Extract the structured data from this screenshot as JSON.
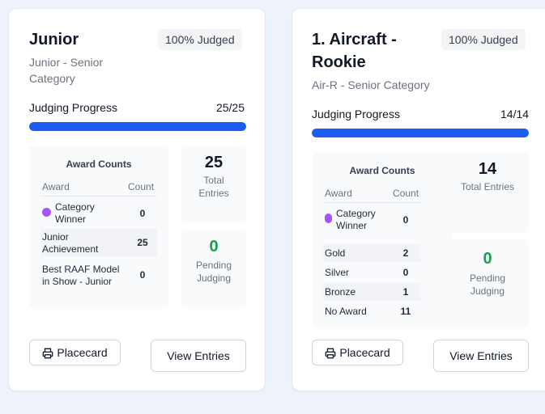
{
  "cards": [
    {
      "title_line1": "Junior",
      "badge": "100% Judged",
      "subtitle_line1": "Junior - Senior",
      "subtitle_line2": "Category",
      "progress_label": "Judging Progress",
      "progress_count": "25/25",
      "progress_fraction": 1.0,
      "award_counts_title": "Award Counts",
      "award_col": "Award",
      "count_col": "Count",
      "awards": [
        {
          "line1": "Category",
          "line2": "Winner",
          "count": "0"
        },
        {
          "line1": "Junior",
          "line2": "Achievement",
          "count": "25"
        },
        {
          "line1": "Best RAAF Model",
          "line2": "in Show - Junior",
          "count": "0"
        }
      ],
      "total_entries": "25",
      "total_label_1": "Total",
      "total_label_2": "Entries",
      "pending": "0",
      "pending_label_1": "Pending",
      "pending_label_2": "Judging",
      "placecard_label": "Placecard",
      "view_entries_label": "View Entries"
    },
    {
      "title_line1": "1. Aircraft -",
      "title_line2": "Rookie",
      "badge": "100% Judged",
      "subtitle_line1": "Air-R - Senior Category",
      "progress_label": "Judging Progress",
      "progress_count": "14/14",
      "progress_fraction": 1.0,
      "award_counts_title": "Award Counts",
      "award_col": "Award",
      "count_col": "Count",
      "awards": [
        {
          "line1": "Category",
          "line2": "Winner",
          "count": "0"
        },
        {
          "line1": "Gold",
          "count": "2"
        },
        {
          "line1": "Silver",
          "count": "0"
        },
        {
          "line1": "Bronze",
          "count": "1"
        },
        {
          "line1": "No Award",
          "count": "11"
        }
      ],
      "total_entries": "14",
      "total_label": "Total Entries",
      "pending": "0",
      "pending_label_1": "Pending",
      "pending_label_2": "Judging",
      "placecard_label": "Placecard",
      "view_entries_label": "View Entries"
    }
  ],
  "colors": {
    "progress": "#1c5cf2",
    "pending": "#16a34a",
    "category_dot": "#a855f7"
  },
  "icons": {
    "placecard": "printer-icon"
  }
}
